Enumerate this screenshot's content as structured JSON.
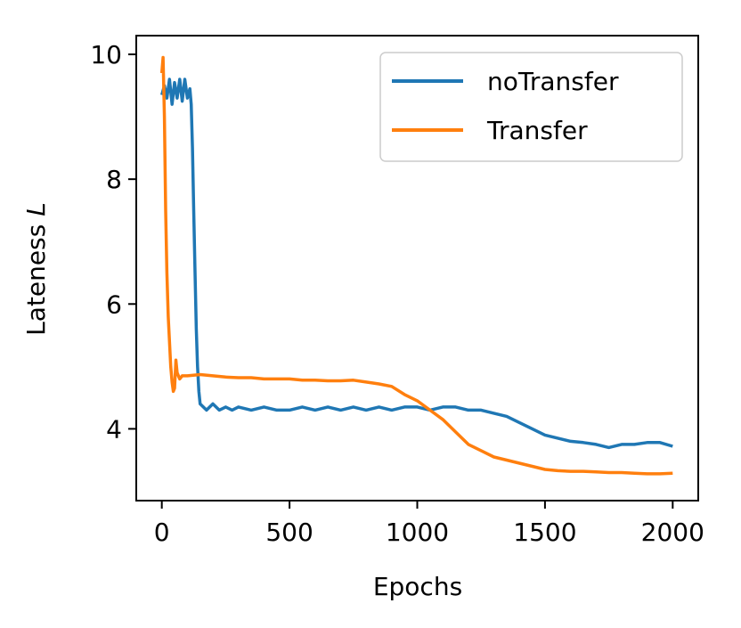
{
  "chart_data": {
    "type": "line",
    "xlabel": "Epochs",
    "ylabel": {
      "text": "Lateness ",
      "symbol": "L"
    },
    "xlim": [
      -100,
      2100
    ],
    "ylim": [
      2.85,
      10.3
    ],
    "xticks": [
      0,
      500,
      1000,
      1500,
      2000
    ],
    "yticks": [
      4,
      6,
      8,
      10
    ],
    "xtick_labels": [
      "0",
      "500",
      "1000",
      "1500",
      "2000"
    ],
    "ytick_labels": [
      "4",
      "6",
      "8",
      "10"
    ],
    "grid": false,
    "legend_position": "top-right",
    "series": [
      {
        "name": "noTransfer",
        "color": "#1f77b4",
        "points": [
          [
            0,
            9.35
          ],
          [
            10,
            9.5
          ],
          [
            20,
            9.3
          ],
          [
            30,
            9.6
          ],
          [
            40,
            9.2
          ],
          [
            50,
            9.55
          ],
          [
            60,
            9.3
          ],
          [
            70,
            9.6
          ],
          [
            80,
            9.25
          ],
          [
            90,
            9.6
          ],
          [
            100,
            9.3
          ],
          [
            110,
            9.45
          ],
          [
            115,
            9.2
          ],
          [
            120,
            8.5
          ],
          [
            125,
            7.5
          ],
          [
            130,
            6.5
          ],
          [
            135,
            5.6
          ],
          [
            140,
            5.0
          ],
          [
            145,
            4.6
          ],
          [
            150,
            4.4
          ],
          [
            175,
            4.3
          ],
          [
            200,
            4.4
          ],
          [
            225,
            4.3
          ],
          [
            250,
            4.35
          ],
          [
            275,
            4.3
          ],
          [
            300,
            4.35
          ],
          [
            350,
            4.3
          ],
          [
            400,
            4.35
          ],
          [
            450,
            4.3
          ],
          [
            500,
            4.3
          ],
          [
            550,
            4.35
          ],
          [
            600,
            4.3
          ],
          [
            650,
            4.35
          ],
          [
            700,
            4.3
          ],
          [
            750,
            4.35
          ],
          [
            800,
            4.3
          ],
          [
            850,
            4.35
          ],
          [
            900,
            4.3
          ],
          [
            950,
            4.35
          ],
          [
            1000,
            4.35
          ],
          [
            1050,
            4.3
          ],
          [
            1100,
            4.35
          ],
          [
            1150,
            4.35
          ],
          [
            1200,
            4.3
          ],
          [
            1250,
            4.3
          ],
          [
            1300,
            4.25
          ],
          [
            1350,
            4.2
          ],
          [
            1400,
            4.1
          ],
          [
            1450,
            4.0
          ],
          [
            1500,
            3.9
          ],
          [
            1550,
            3.85
          ],
          [
            1600,
            3.8
          ],
          [
            1650,
            3.78
          ],
          [
            1700,
            3.75
          ],
          [
            1750,
            3.7
          ],
          [
            1800,
            3.75
          ],
          [
            1850,
            3.75
          ],
          [
            1900,
            3.78
          ],
          [
            1950,
            3.78
          ],
          [
            2000,
            3.72
          ]
        ]
      },
      {
        "name": "Transfer",
        "color": "#ff7f0e",
        "points": [
          [
            0,
            9.7
          ],
          [
            5,
            9.95
          ],
          [
            10,
            9.0
          ],
          [
            15,
            7.5
          ],
          [
            20,
            6.5
          ],
          [
            25,
            5.8
          ],
          [
            30,
            5.4
          ],
          [
            35,
            5.0
          ],
          [
            40,
            4.75
          ],
          [
            45,
            4.6
          ],
          [
            50,
            4.65
          ],
          [
            55,
            5.1
          ],
          [
            60,
            4.9
          ],
          [
            70,
            4.8
          ],
          [
            80,
            4.85
          ],
          [
            100,
            4.85
          ],
          [
            150,
            4.87
          ],
          [
            200,
            4.85
          ],
          [
            250,
            4.83
          ],
          [
            300,
            4.82
          ],
          [
            350,
            4.82
          ],
          [
            400,
            4.8
          ],
          [
            450,
            4.8
          ],
          [
            500,
            4.8
          ],
          [
            550,
            4.78
          ],
          [
            600,
            4.78
          ],
          [
            650,
            4.77
          ],
          [
            700,
            4.77
          ],
          [
            750,
            4.78
          ],
          [
            800,
            4.75
          ],
          [
            850,
            4.72
          ],
          [
            900,
            4.68
          ],
          [
            950,
            4.55
          ],
          [
            1000,
            4.45
          ],
          [
            1050,
            4.3
          ],
          [
            1100,
            4.15
          ],
          [
            1150,
            3.95
          ],
          [
            1200,
            3.75
          ],
          [
            1250,
            3.65
          ],
          [
            1300,
            3.55
          ],
          [
            1350,
            3.5
          ],
          [
            1400,
            3.45
          ],
          [
            1450,
            3.4
          ],
          [
            1500,
            3.35
          ],
          [
            1550,
            3.33
          ],
          [
            1600,
            3.32
          ],
          [
            1650,
            3.32
          ],
          [
            1700,
            3.31
          ],
          [
            1750,
            3.3
          ],
          [
            1800,
            3.3
          ],
          [
            1850,
            3.29
          ],
          [
            1900,
            3.28
          ],
          [
            1950,
            3.28
          ],
          [
            2000,
            3.29
          ]
        ]
      }
    ]
  }
}
